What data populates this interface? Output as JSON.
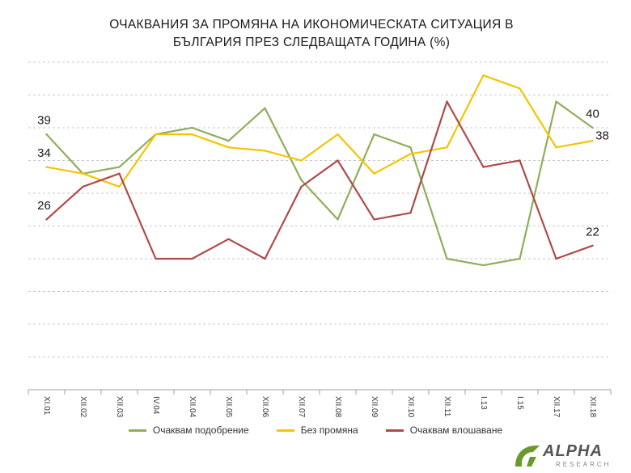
{
  "chart_data": {
    "type": "line",
    "title_line1": "ОЧАКВАНИЯ  ЗА ПРОМЯНА  НА  ИКОНОМИЧЕСКАТА  СИТУАЦИЯ В",
    "title_line2": "БЪЛГАРИЯ ПРЕЗ СЛЕДВАЩАТА  ГОДИНА  (%)",
    "categories": [
      "XI.01",
      "XII.02",
      "XII.03",
      "IV.04",
      "XII.04",
      "XII.05",
      "XII.06",
      "XII.07",
      "XII.08",
      "XII.09",
      "XII.10",
      "XII.11",
      "I.13",
      "I.15",
      "XII.17",
      "XII.18"
    ],
    "ylim": [
      0,
      50
    ],
    "grid": true,
    "legend_position": "bottom",
    "series": [
      {
        "name": "Очаквам подобрение",
        "color": "#8fae5a",
        "values": [
          39,
          33,
          34,
          39,
          40,
          38,
          43,
          32,
          26,
          39,
          37,
          20,
          19,
          20,
          44,
          40
        ]
      },
      {
        "name": "Без промяна",
        "color": "#f5c400",
        "values": [
          34,
          33,
          31,
          39,
          39,
          37,
          36.5,
          35,
          39,
          33,
          36,
          37,
          48,
          46,
          37,
          38
        ]
      },
      {
        "name": "Очаквам влошаване",
        "color": "#b04a4a",
        "values": [
          26,
          31,
          33,
          20,
          20,
          23,
          20,
          31,
          35,
          26,
          27,
          44,
          34,
          35,
          20,
          22
        ]
      }
    ],
    "data_labels": [
      {
        "text": "39",
        "series": 0,
        "point": 0
      },
      {
        "text": "34",
        "series": 1,
        "point": 0
      },
      {
        "text": "26",
        "series": 2,
        "point": 0
      },
      {
        "text": "40",
        "series": 0,
        "point": 15
      },
      {
        "text": "38",
        "series": 1,
        "point": 15
      },
      {
        "text": "22",
        "series": 2,
        "point": 15
      }
    ]
  },
  "logo": {
    "main": "ALPHA",
    "sub": "RESEARCH",
    "mark_color": "#6a9a2e"
  }
}
